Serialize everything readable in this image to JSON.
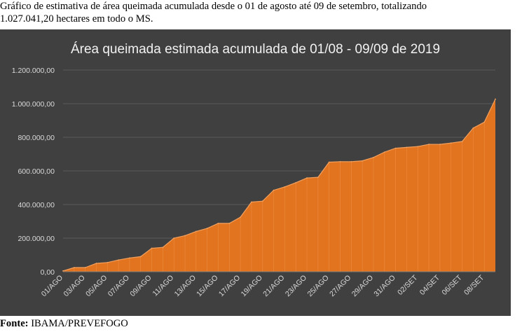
{
  "caption": "Gráfico de estimativa de área queimada acumulada desde o 01 de agosto até 09 de setembro, totalizando\n1.027.041,20 hectares em todo o MS.",
  "source": {
    "label": "Fonte:",
    "text": "IBAMA/PREVEFOGO"
  },
  "colors": {
    "panel": "#404040",
    "area": "#E2741F",
    "area_edge": "#F4A15E",
    "grid": "#5A5A5A",
    "text": "#DADADA"
  },
  "chart_data": {
    "type": "area",
    "title": "Área queimada estimada acumulada de 01/08 - 09/09 de 2019",
    "xlabel": "",
    "ylabel": "",
    "ylim": [
      0,
      1200000
    ],
    "yticks": [
      "0,00",
      "200.000,00",
      "400.000,00",
      "600.000,00",
      "800.000,00",
      "1.000.000,00",
      "1.200.000,00"
    ],
    "grid": true,
    "legend": "none",
    "x": [
      "01/AGO",
      "02/AGO",
      "03/AGO",
      "04/AGO",
      "05/AGO",
      "06/AGO",
      "07/AGO",
      "08/AGO",
      "09/AGO",
      "10/AGO",
      "11/AGO",
      "12/AGO",
      "13/AGO",
      "14/AGO",
      "15/AGO",
      "16/AGO",
      "17/AGO",
      "18/AGO",
      "19/AGO",
      "20/AGO",
      "21/AGO",
      "22/AGO",
      "23/AGO",
      "24/AGO",
      "25/AGO",
      "26/AGO",
      "27/AGO",
      "28/AGO",
      "29/AGO",
      "30/AGO",
      "31/AGO",
      "01/SET",
      "02/SET",
      "03/SET",
      "04/SET",
      "05/SET",
      "06/SET",
      "07/SET",
      "08/SET",
      "09/SET"
    ],
    "x_tick_labels": [
      "01/AGO",
      "03/AGO",
      "05/AGO",
      "07/AGO",
      "09/AGO",
      "11/AGO",
      "13/AGO",
      "15/AGO",
      "17/AGO",
      "19/AGO",
      "21/AGO",
      "23/AGO",
      "25/AGO",
      "27/AGO",
      "29/AGO",
      "31/AGO",
      "02/SET",
      "04/SET",
      "06/SET",
      "08/SET"
    ],
    "values": [
      5000,
      25000,
      25000,
      50000,
      55000,
      70000,
      82000,
      90000,
      140000,
      145000,
      200000,
      215000,
      240000,
      258000,
      288000,
      288000,
      325000,
      415000,
      420000,
      485000,
      505000,
      530000,
      558000,
      562000,
      652000,
      655000,
      655000,
      660000,
      680000,
      712000,
      735000,
      740000,
      745000,
      758000,
      758000,
      766000,
      775000,
      855000,
      890000,
      1027041.2
    ]
  }
}
